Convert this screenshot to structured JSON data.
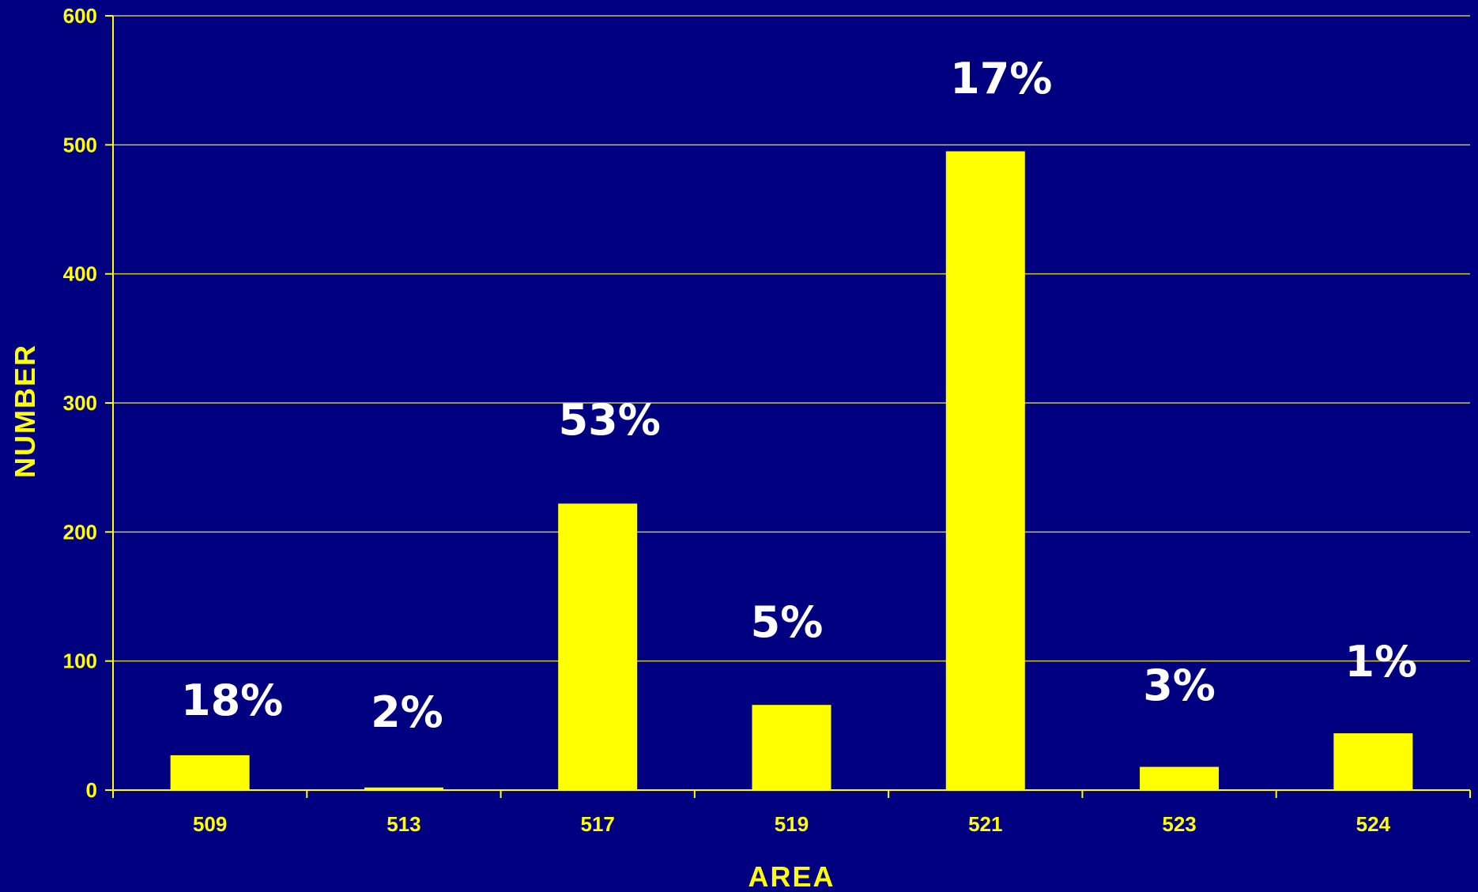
{
  "chart_data": {
    "type": "bar",
    "title": "",
    "xlabel": "AREA",
    "ylabel": "NUMBER",
    "categories": [
      "509",
      "513",
      "517",
      "519",
      "521",
      "523",
      "524"
    ],
    "values": [
      27,
      2,
      222,
      66,
      495,
      18,
      44
    ],
    "data_labels": [
      "18%",
      "2%",
      "53%",
      "5%",
      "17%",
      "3%",
      "1%"
    ],
    "ylim": [
      0,
      600
    ],
    "yticks": [
      "0",
      "100",
      "200",
      "300",
      "400",
      "500",
      "600"
    ],
    "grid": true,
    "legend": "none",
    "colors": {
      "background": "#000080",
      "bar": "#ffff00",
      "axis": "#ffff00",
      "gridline": "#c8c83c",
      "tick_text": "#ffff00",
      "data_label": "#ffffff"
    }
  }
}
